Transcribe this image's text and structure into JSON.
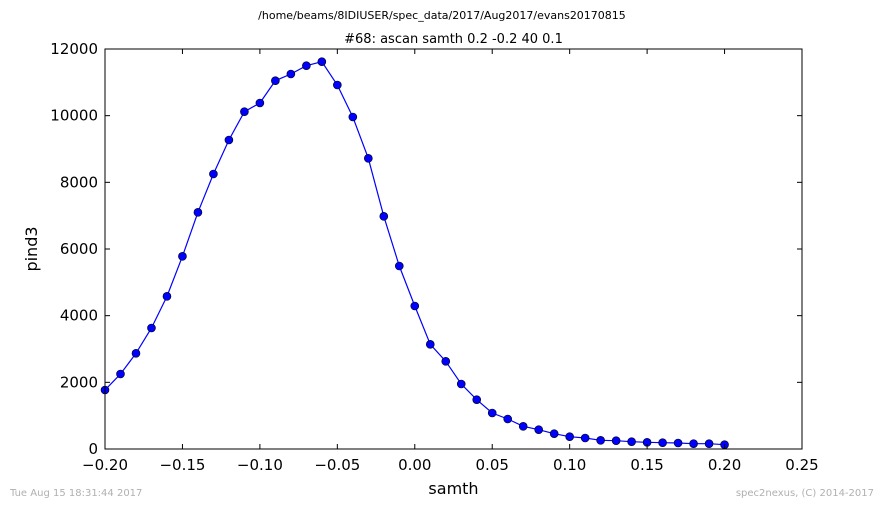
{
  "figure": {
    "suptitle": "/home/beams/8IDIUSER/spec_data/2017/Aug2017/evans20170815",
    "timestamp": "Tue Aug 15 18:31:44 2017",
    "credit": "spec2nexus, (C) 2014-2017"
  },
  "chart_data": {
    "type": "line",
    "title": "#68: ascan  samth 0.2 -0.2  40 0.1",
    "xlabel": "samth",
    "ylabel": "pind3",
    "xlim": [
      -0.2,
      0.25
    ],
    "ylim": [
      0,
      12000
    ],
    "xticks": [
      -0.2,
      -0.15,
      -0.1,
      -0.05,
      0.0,
      0.05,
      0.1,
      0.15,
      0.2,
      0.25
    ],
    "xtick_labels": [
      "−0.20",
      "−0.15",
      "−0.10",
      "−0.05",
      "0.00",
      "0.05",
      "0.10",
      "0.15",
      "0.20",
      "0.25"
    ],
    "yticks": [
      0,
      2000,
      4000,
      6000,
      8000,
      10000,
      12000
    ],
    "ytick_labels": [
      "0",
      "2000",
      "4000",
      "6000",
      "8000",
      "10000",
      "12000"
    ],
    "grid": false,
    "series": [
      {
        "color": "#0000ff",
        "marker": "circle",
        "x": [
          -0.2,
          -0.19,
          -0.18,
          -0.17,
          -0.16,
          -0.15,
          -0.14,
          -0.13,
          -0.12,
          -0.11,
          -0.1,
          -0.09,
          -0.08,
          -0.07,
          -0.06,
          -0.05,
          -0.04,
          -0.03,
          -0.02,
          -0.01,
          0.0,
          0.01,
          0.02,
          0.03,
          0.04,
          0.05,
          0.06,
          0.07,
          0.08,
          0.09,
          0.1,
          0.11,
          0.12,
          0.13,
          0.14,
          0.15,
          0.16,
          0.17,
          0.18,
          0.19,
          0.2
        ],
        "y": [
          1770,
          2250,
          2870,
          3630,
          4580,
          5780,
          7100,
          8250,
          9270,
          10120,
          10380,
          11050,
          11250,
          11500,
          11620,
          10920,
          9960,
          8720,
          6980,
          5490,
          4290,
          3140,
          2630,
          1950,
          1480,
          1080,
          900,
          680,
          580,
          460,
          370,
          330,
          260,
          250,
          220,
          200,
          190,
          180,
          160,
          160,
          130
        ]
      }
    ]
  }
}
